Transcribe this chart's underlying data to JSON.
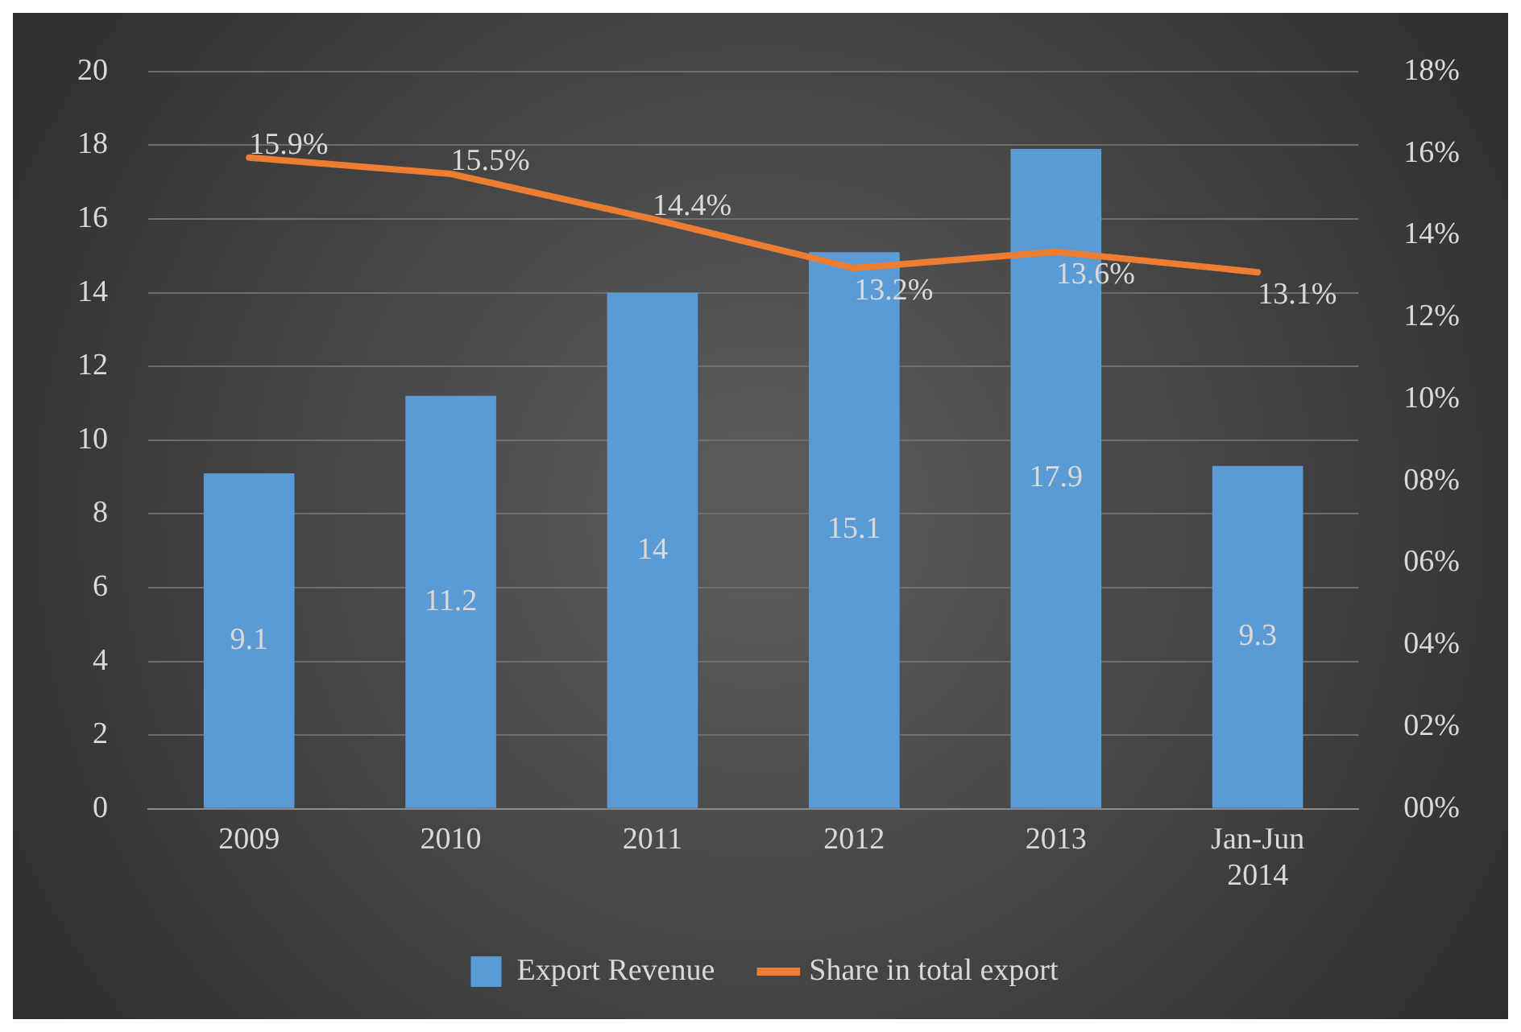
{
  "chart_data": {
    "type": "bar",
    "categories": [
      "2009",
      "2010",
      "2011",
      "2012",
      "2013",
      "Jan-Jun 2014"
    ],
    "series": [
      {
        "name": "Export Revenue",
        "color": "#5b9bd5",
        "values": [
          9.1,
          11.2,
          14,
          15.1,
          17.9,
          9.3
        ],
        "value_labels": [
          "9.1",
          "11.2",
          "14",
          "15.1",
          "17.9",
          "9.3"
        ]
      },
      {
        "name": "Share in total export",
        "type": "line",
        "axis": "y2",
        "color": "#ed7d31",
        "values": [
          15.9,
          15.5,
          14.4,
          13.2,
          13.6,
          13.1
        ],
        "value_labels": [
          "15.9%",
          "15.5%",
          "14.4%",
          "13.2%",
          "13.6%",
          "13.1%"
        ]
      }
    ],
    "ylim": [
      0,
      20
    ],
    "yticks": [
      0,
      2,
      4,
      6,
      8,
      10,
      12,
      14,
      16,
      18,
      20
    ],
    "y2lim": [
      0,
      18
    ],
    "y2ticks": [
      {
        "value": 0,
        "label": "00%"
      },
      {
        "value": 2,
        "label": "02%"
      },
      {
        "value": 4,
        "label": "04%"
      },
      {
        "value": 6,
        "label": "06%"
      },
      {
        "value": 8,
        "label": "08%"
      },
      {
        "value": 10,
        "label": "10%"
      },
      {
        "value": 12,
        "label": "12%"
      },
      {
        "value": 14,
        "label": "14%"
      },
      {
        "value": 16,
        "label": "16%"
      },
      {
        "value": 18,
        "label": "18%"
      }
    ],
    "grid": "y",
    "legend": "bottom",
    "marker": "none",
    "line_style": "solid"
  }
}
